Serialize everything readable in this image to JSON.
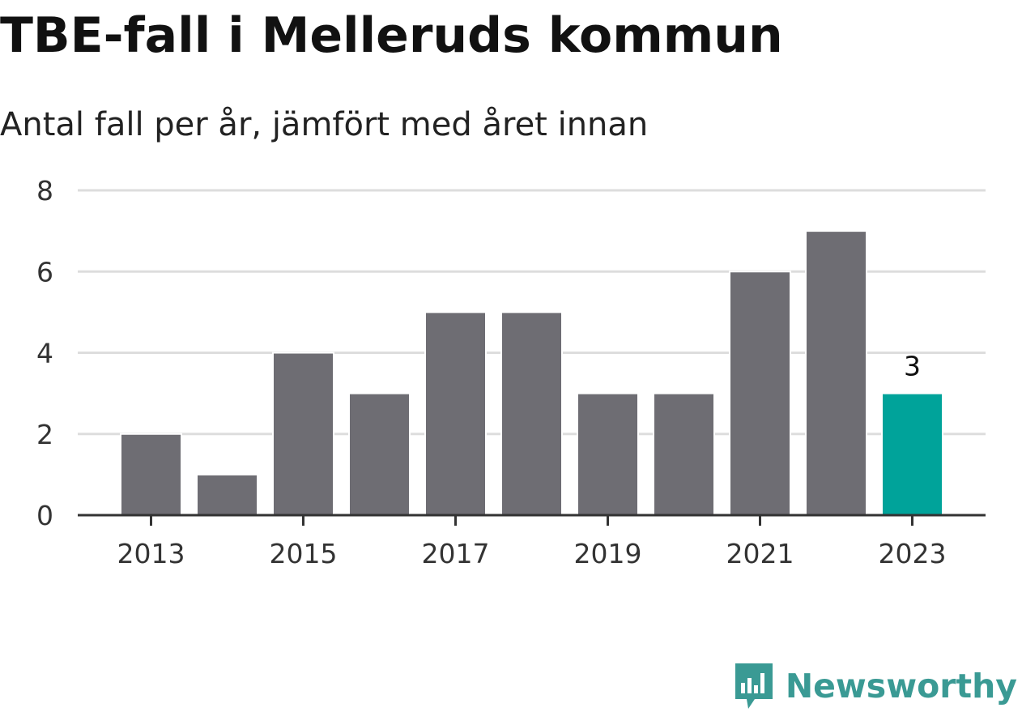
{
  "chart_data": {
    "type": "bar",
    "title": "TBE-fall i Melleruds kommun",
    "subtitle": "Antal fall per år, jämfört med året innan",
    "categories": [
      "2013",
      "2014",
      "2015",
      "2016",
      "2017",
      "2018",
      "2019",
      "2020",
      "2021",
      "2022",
      "2023"
    ],
    "values": [
      2,
      1,
      4,
      3,
      5,
      5,
      3,
      3,
      6,
      7,
      3
    ],
    "x_tick_labels": [
      "2013",
      "2015",
      "2017",
      "2019",
      "2021",
      "2023"
    ],
    "y_ticks": [
      0,
      2,
      4,
      6,
      8
    ],
    "ylim": [
      0,
      8
    ],
    "grid": "horizontal dashed",
    "colors": {
      "bar": "#6e6d73",
      "highlight": "#00a39a",
      "grid": "#dddddd",
      "axis": "#333333"
    },
    "highlight_index": 10,
    "annotations": [
      {
        "category": "2023",
        "label": "3"
      }
    ]
  },
  "branding": {
    "name": "Newsworthy",
    "icon": "newsworthy-chart-bubble-icon",
    "color": "#3a9a94"
  }
}
